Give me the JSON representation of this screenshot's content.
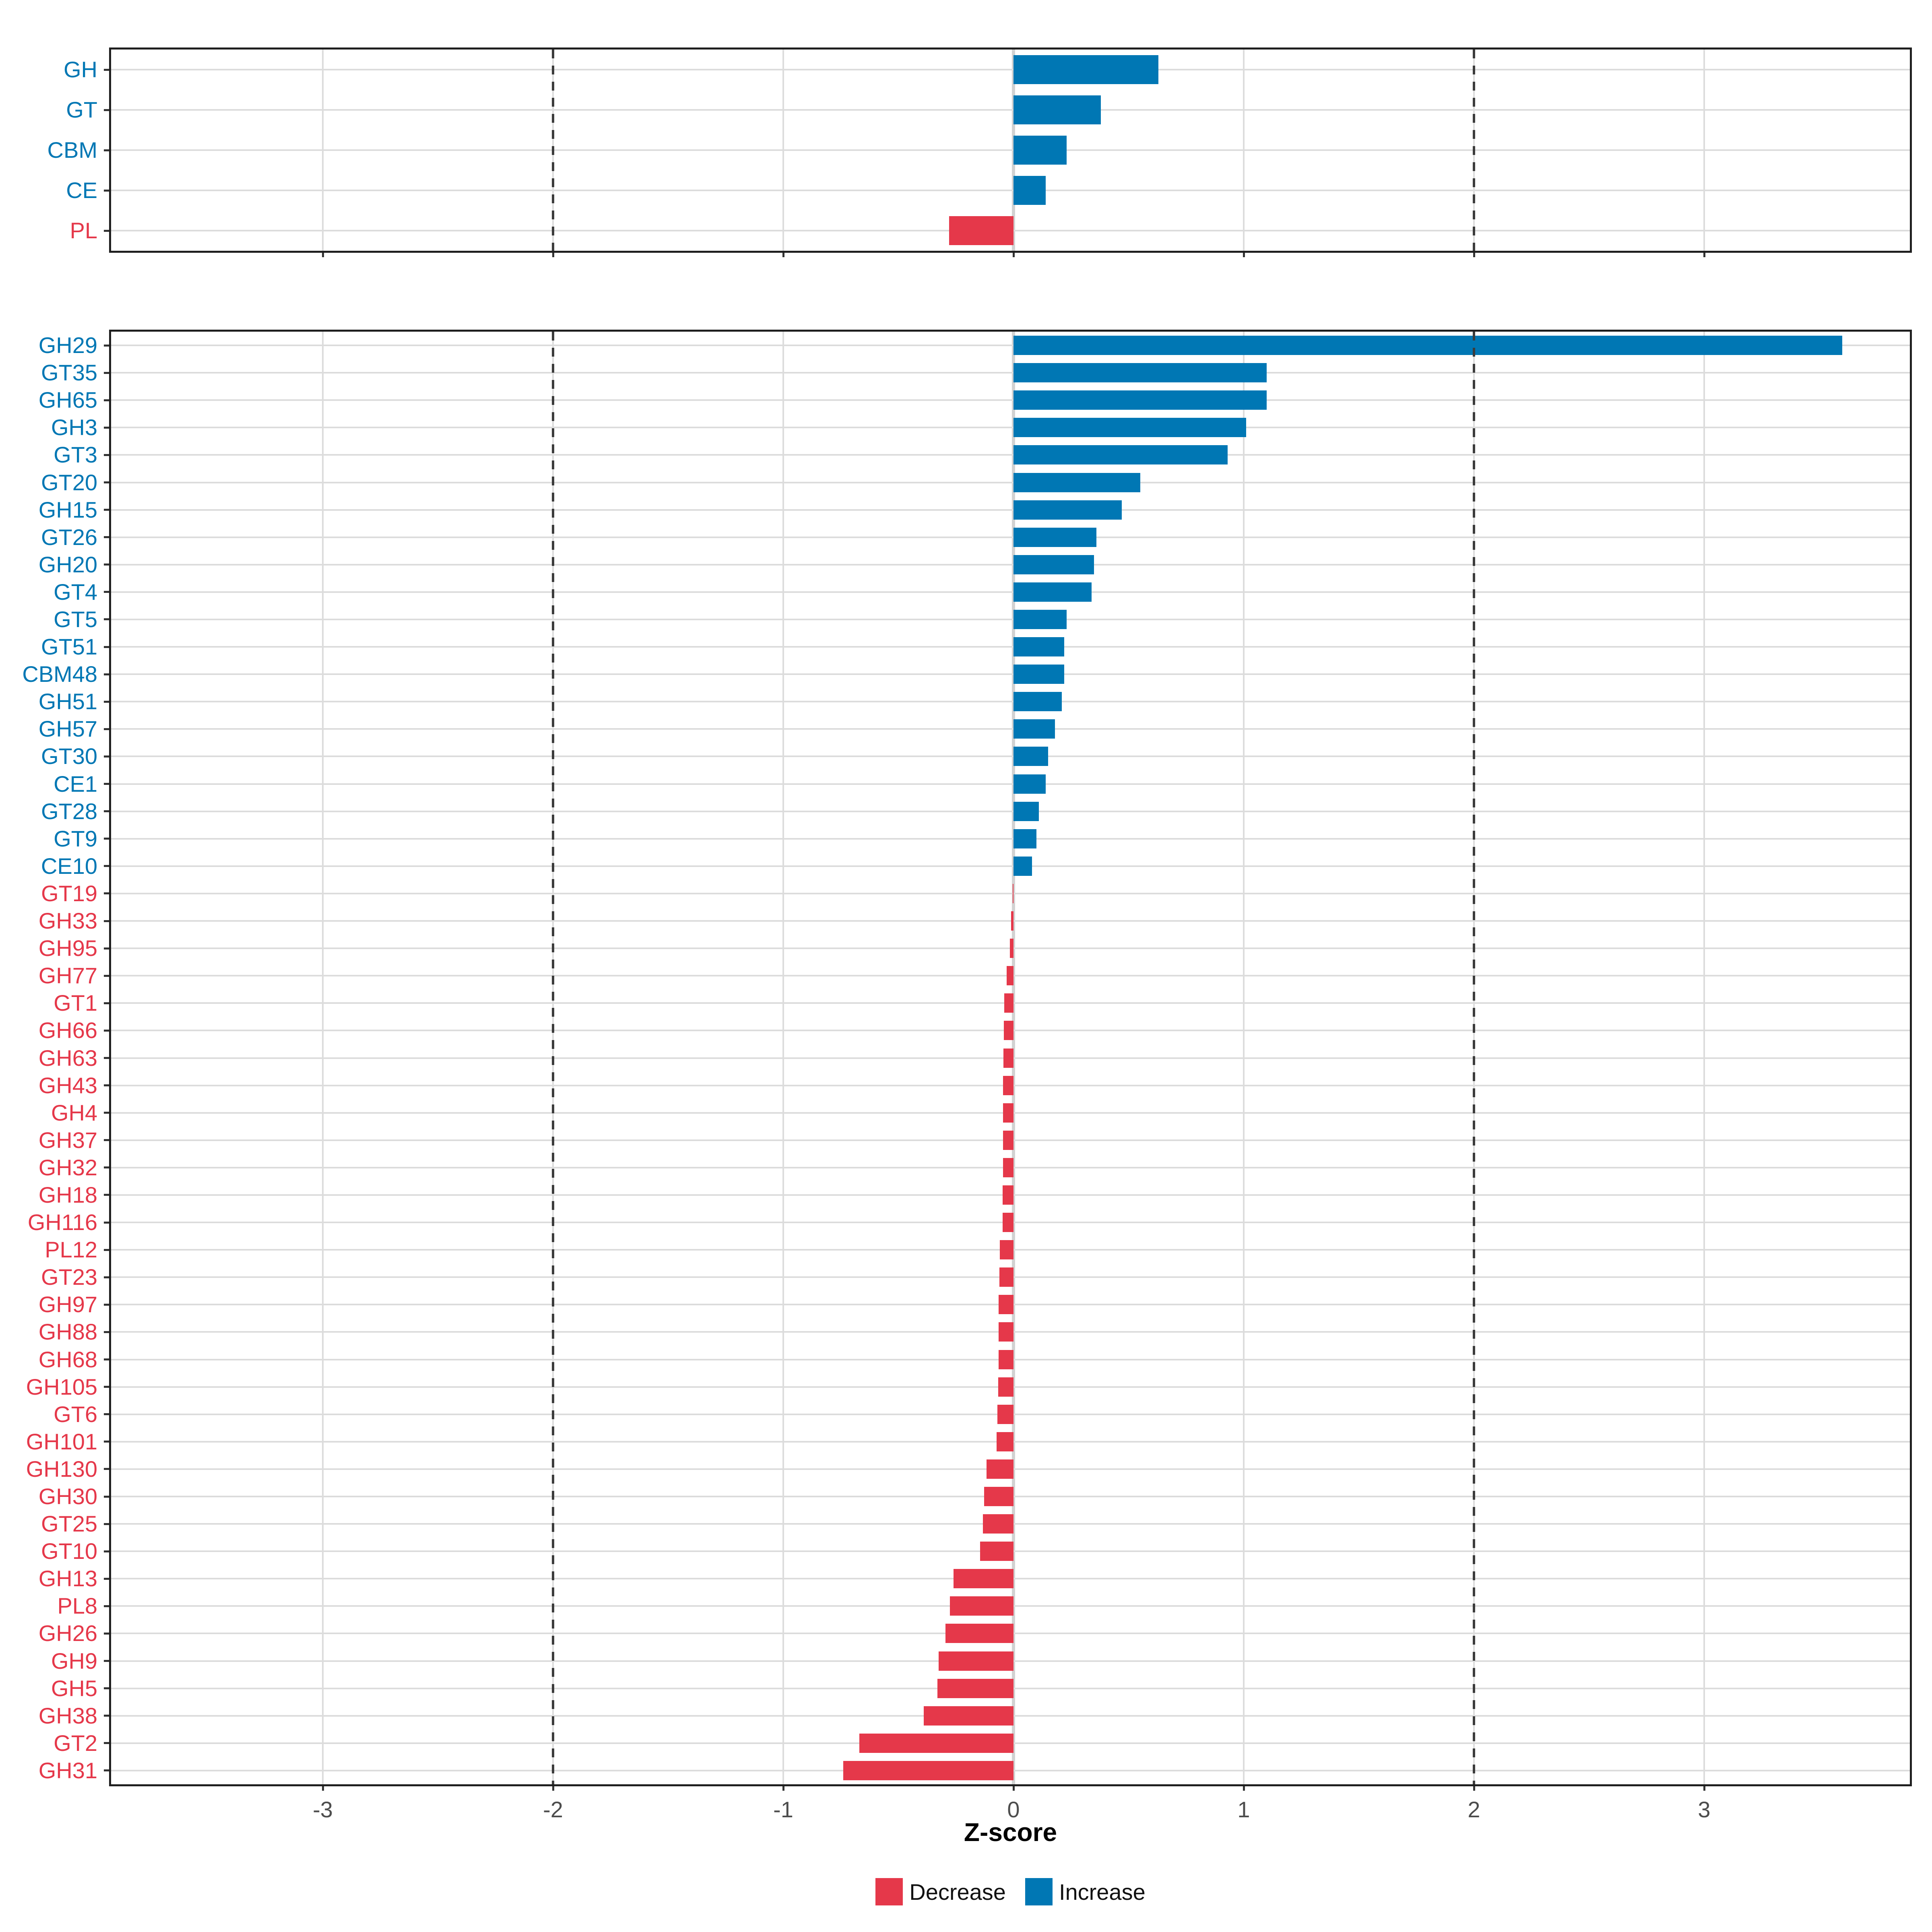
{
  "figure": {
    "xlabel": "Z-score"
  },
  "colors": {
    "increase": "#0077b4",
    "decrease": "#e5384a",
    "grid": "#dcdcdc",
    "zero_line": "#d2d2d2",
    "dashed_line": "#3c3c3c",
    "panel_border": "#1f1f1f",
    "tick": "#333333",
    "tick_label_text": "#4d4d4d",
    "axis_title_text": "#000000",
    "legend_text": "#111111"
  },
  "legend": {
    "items": [
      {
        "label": "Decrease",
        "color_key": "decrease"
      },
      {
        "label": "Increase",
        "color_key": "increase"
      }
    ]
  },
  "chart_data": [
    {
      "type": "bar",
      "orientation": "horizontal",
      "panel": "enzyme-families",
      "title": "",
      "xlabel": "Z-score",
      "xlim": [
        -3.91,
        3.9
      ],
      "x_ticks": [
        -3,
        -2,
        -1,
        0,
        1,
        2,
        3
      ],
      "x_tick_labels": [
        "-3",
        "-2",
        "-1",
        "0",
        "1",
        "2",
        "3"
      ],
      "reference_lines": [
        -2,
        2
      ],
      "grid": true,
      "show_x_tick_labels": false,
      "categories": [
        "GH",
        "GT",
        "CBM",
        "CE",
        "PL"
      ],
      "values": [
        0.63,
        0.38,
        0.23,
        0.14,
        -0.28
      ]
    },
    {
      "type": "bar",
      "orientation": "horizontal",
      "panel": "enzyme-subfamilies",
      "title": "",
      "xlabel": "Z-score",
      "xlim": [
        -3.91,
        3.9
      ],
      "x_ticks": [
        -3,
        -2,
        -1,
        0,
        1,
        2,
        3
      ],
      "x_tick_labels": [
        "-3",
        "-2",
        "-1",
        "0",
        "1",
        "2",
        "3"
      ],
      "reference_lines": [
        -2,
        2
      ],
      "grid": true,
      "show_x_tick_labels": true,
      "categories": [
        "GH29",
        "GT35",
        "GH65",
        "GH3",
        "GT3",
        "GT20",
        "GH15",
        "GT26",
        "GH20",
        "GT4",
        "GT5",
        "GT51",
        "CBM48",
        "GH51",
        "GH57",
        "GT30",
        "CE1",
        "GT28",
        "GT9",
        "CE10",
        "GT19",
        "GH33",
        "GH95",
        "GH77",
        "GT1",
        "GH66",
        "GH63",
        "GH43",
        "GH4",
        "GH37",
        "GH32",
        "GH18",
        "GH116",
        "PL12",
        "GT23",
        "GH97",
        "GH88",
        "GH68",
        "GH105",
        "GT6",
        "GH101",
        "GH130",
        "GH30",
        "GT25",
        "GT10",
        "GH13",
        "PL8",
        "GH26",
        "GH9",
        "GH5",
        "GH38",
        "GT2",
        "GH31"
      ],
      "values": [
        3.6,
        1.1,
        1.1,
        1.01,
        0.93,
        0.55,
        0.47,
        0.36,
        0.35,
        0.34,
        0.23,
        0.22,
        0.22,
        0.21,
        0.18,
        0.15,
        0.14,
        0.11,
        0.1,
        0.08,
        -0.003,
        -0.01,
        -0.015,
        -0.03,
        -0.04,
        -0.042,
        -0.044,
        -0.045,
        -0.045,
        -0.046,
        -0.046,
        -0.047,
        -0.047,
        -0.06,
        -0.062,
        -0.064,
        -0.065,
        -0.065,
        -0.066,
        -0.07,
        -0.073,
        -0.118,
        -0.128,
        -0.133,
        -0.145,
        -0.26,
        -0.276,
        -0.295,
        -0.325,
        -0.33,
        -0.39,
        -0.67,
        -0.74
      ]
    }
  ]
}
